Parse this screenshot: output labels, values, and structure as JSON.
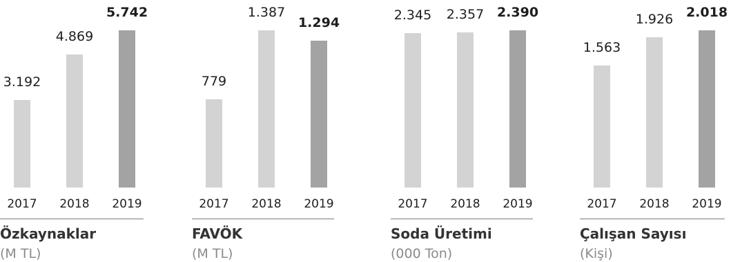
{
  "colors": {
    "prior_years": "#d3d3d3",
    "current_year": "#a3a3a3"
  },
  "chart_data": [
    {
      "type": "bar",
      "title": "Özkaynaklar",
      "subtitle": "(M TL)",
      "categories": [
        "2017",
        "2018",
        "2019"
      ],
      "values": [
        3192,
        4869,
        5742
      ],
      "value_labels": [
        "3.192",
        "4.869",
        "5.742"
      ],
      "highlight": "2019",
      "grid": false
    },
    {
      "type": "bar",
      "title": "FAVÖK",
      "subtitle": "(M TL)",
      "categories": [
        "2017",
        "2018",
        "2019"
      ],
      "values": [
        779,
        1387,
        1294
      ],
      "value_labels": [
        "779",
        "1.387",
        "1.294"
      ],
      "highlight": "2019",
      "grid": false
    },
    {
      "type": "bar",
      "title": "Soda Üretimi",
      "subtitle": "(000 Ton)",
      "categories": [
        "2017",
        "2018",
        "2019"
      ],
      "values": [
        2345,
        2357,
        2390
      ],
      "value_labels": [
        "2.345",
        "2.357",
        "2.390"
      ],
      "highlight": "2019",
      "grid": false
    },
    {
      "type": "bar",
      "title": "Çalışan Sayısı",
      "subtitle": "(Kişi)",
      "categories": [
        "2017",
        "2018",
        "2019"
      ],
      "values": [
        1563,
        1926,
        2018
      ],
      "value_labels": [
        "1.563",
        "1.926",
        "2.018"
      ],
      "highlight": "2019",
      "grid": false
    }
  ]
}
